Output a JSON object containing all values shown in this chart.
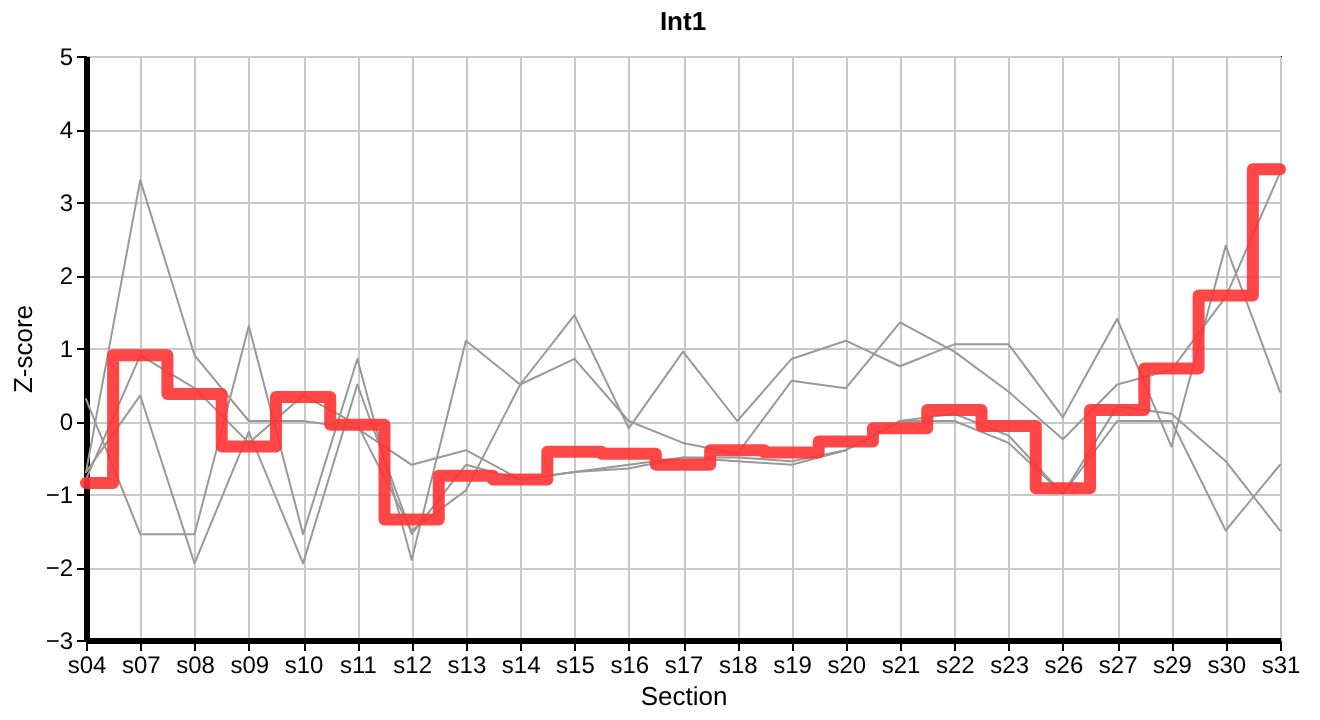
{
  "chart_data": {
    "type": "line",
    "title": "Int1",
    "xlabel": "Section",
    "ylabel": "Z-score",
    "categories": [
      "s04",
      "s07",
      "s08",
      "s09",
      "s10",
      "s11",
      "s12",
      "s13",
      "s14",
      "s15",
      "s16",
      "s17",
      "s18",
      "s19",
      "s20",
      "s21",
      "s22",
      "s23",
      "s26",
      "s27",
      "s29",
      "s30",
      "s31"
    ],
    "ylim": [
      -3,
      5
    ],
    "yticks": [
      -3,
      -2,
      -1,
      0,
      1,
      2,
      3,
      4,
      5
    ],
    "grid": true,
    "series": [
      {
        "color": "#999999",
        "values": [
          -0.7,
          3.3,
          0.9,
          0.0,
          0.0,
          -0.1,
          -0.6,
          -0.4,
          -0.8,
          -0.7,
          -0.65,
          -0.5,
          -0.55,
          -0.6,
          -0.4,
          0.0,
          0.0,
          -0.3,
          -1.0,
          0.2,
          0.1,
          -0.55,
          -1.5
        ]
      },
      {
        "color": "#999999",
        "values": [
          0.3,
          -1.55,
          -1.55,
          1.3,
          -1.55,
          0.85,
          -1.9,
          1.1,
          0.5,
          1.45,
          -0.1,
          0.95,
          0.0,
          0.85,
          1.1,
          0.75,
          1.05,
          1.05,
          0.05,
          1.4,
          -0.35,
          2.4,
          0.4
        ]
      },
      {
        "color": "#999999",
        "values": [
          -0.8,
          0.9,
          0.45,
          -0.3,
          0.35,
          -0.05,
          -1.5,
          -0.95,
          0.5,
          0.85,
          0.0,
          -0.3,
          -0.45,
          0.55,
          0.45,
          1.35,
          0.95,
          0.4,
          -0.25,
          0.5,
          0.7,
          1.7,
          3.4
        ]
      },
      {
        "color": "#999999",
        "values": [
          -0.7,
          0.35,
          -1.95,
          -0.15,
          -1.95,
          0.5,
          -1.55,
          -0.6,
          -0.8,
          -0.7,
          -0.6,
          -0.5,
          -0.5,
          -0.55,
          -0.4,
          0.0,
          0.1,
          -0.2,
          -1.0,
          0.0,
          0.0,
          -1.5,
          -0.6
        ]
      },
      {
        "type": "step",
        "color": "#ff3333",
        "values": [
          -0.85,
          0.9,
          0.37,
          -0.35,
          0.33,
          -0.05,
          -1.35,
          -0.75,
          -0.8,
          -0.42,
          -0.45,
          -0.6,
          -0.4,
          -0.43,
          -0.28,
          -0.1,
          0.15,
          -0.07,
          -0.92,
          0.15,
          0.72,
          1.72,
          3.45
        ]
      }
    ]
  }
}
